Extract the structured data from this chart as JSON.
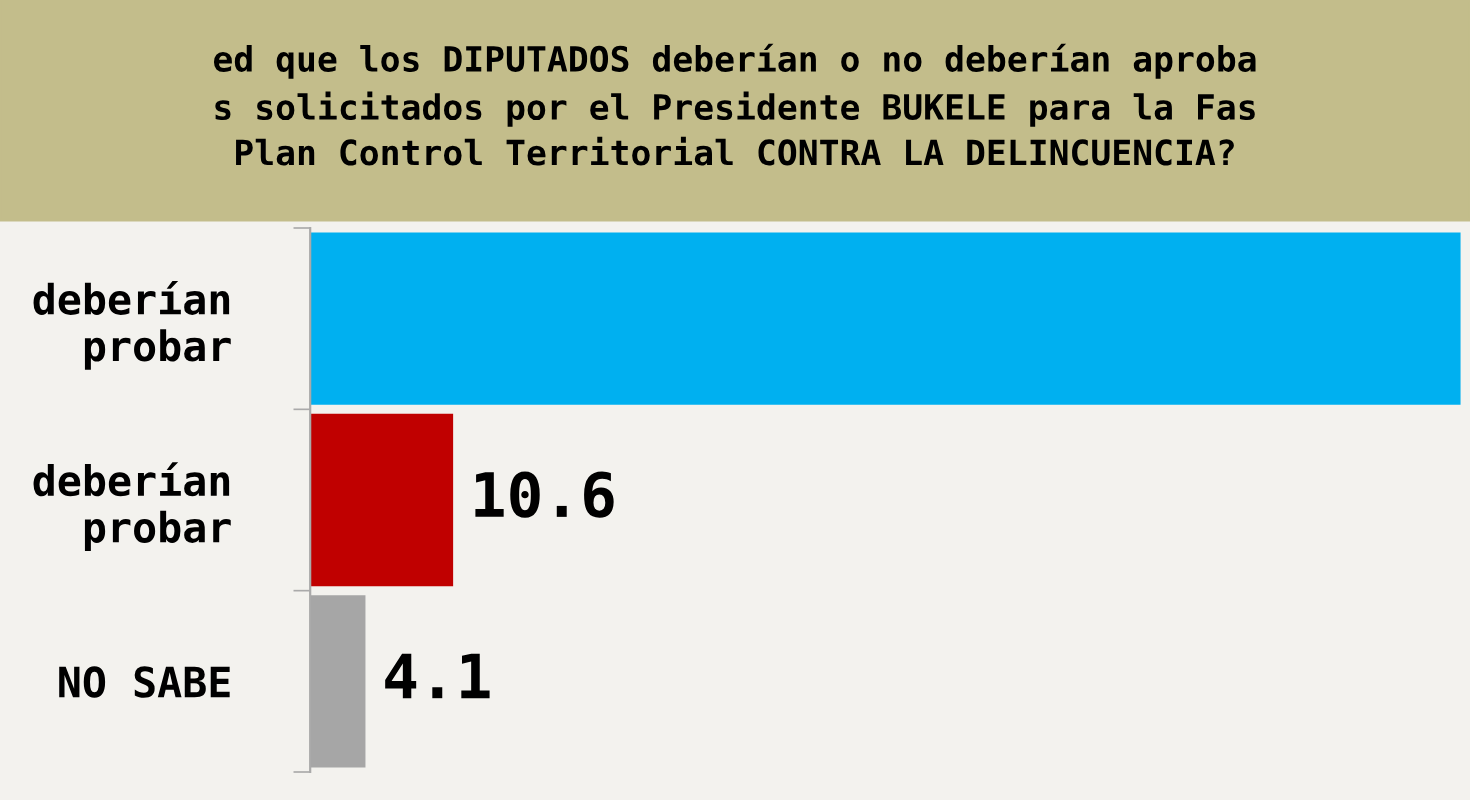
{
  "chart_data": {
    "type": "bar",
    "orientation": "horizontal",
    "title": "ed que los DIPUTADOS deberían o no deberían aproba\ns solicitados por el Presidente BUKELE para la Fas\nPlan Control Territorial CONTRA LA DELINCUENCIA?",
    "categories": [
      "deberían\nprobar",
      "deberían\nprobar",
      "NO SABE"
    ],
    "values": [
      85.3,
      10.6,
      4.1
    ],
    "colors": [
      "#00b0f0",
      "#c00000",
      "#a6a6a6"
    ],
    "value_labels": [
      null,
      "10.6",
      "4.1"
    ],
    "xlim": [
      0,
      86
    ],
    "grid": false,
    "legend": false,
    "tick_labels": "y"
  }
}
